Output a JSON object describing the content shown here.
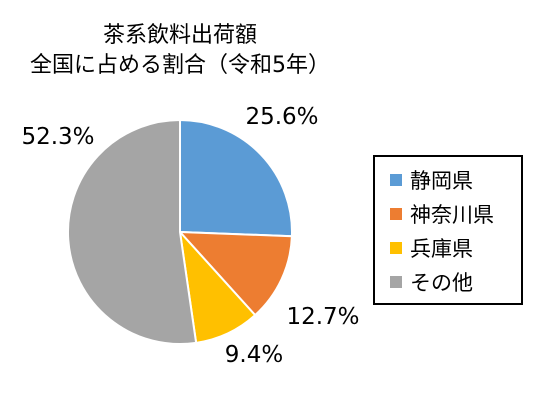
{
  "chart_data": {
    "type": "pie",
    "title_lines": [
      "茶系飲料出荷額",
      "全国に占める割合（令和5年）"
    ],
    "categories": [
      "静岡県",
      "神奈川県",
      "兵庫県",
      "その他"
    ],
    "values": [
      25.6,
      12.7,
      9.4,
      52.3
    ],
    "unit": "%",
    "data_labels": [
      "25.6%",
      "12.7%",
      "9.4%",
      "52.3%"
    ],
    "colors": [
      "#5B9BD5",
      "#ED7D31",
      "#FFC000",
      "#A5A5A5"
    ],
    "start_angle": "12 o'clock",
    "direction": "clockwise",
    "legend_position": "right"
  }
}
